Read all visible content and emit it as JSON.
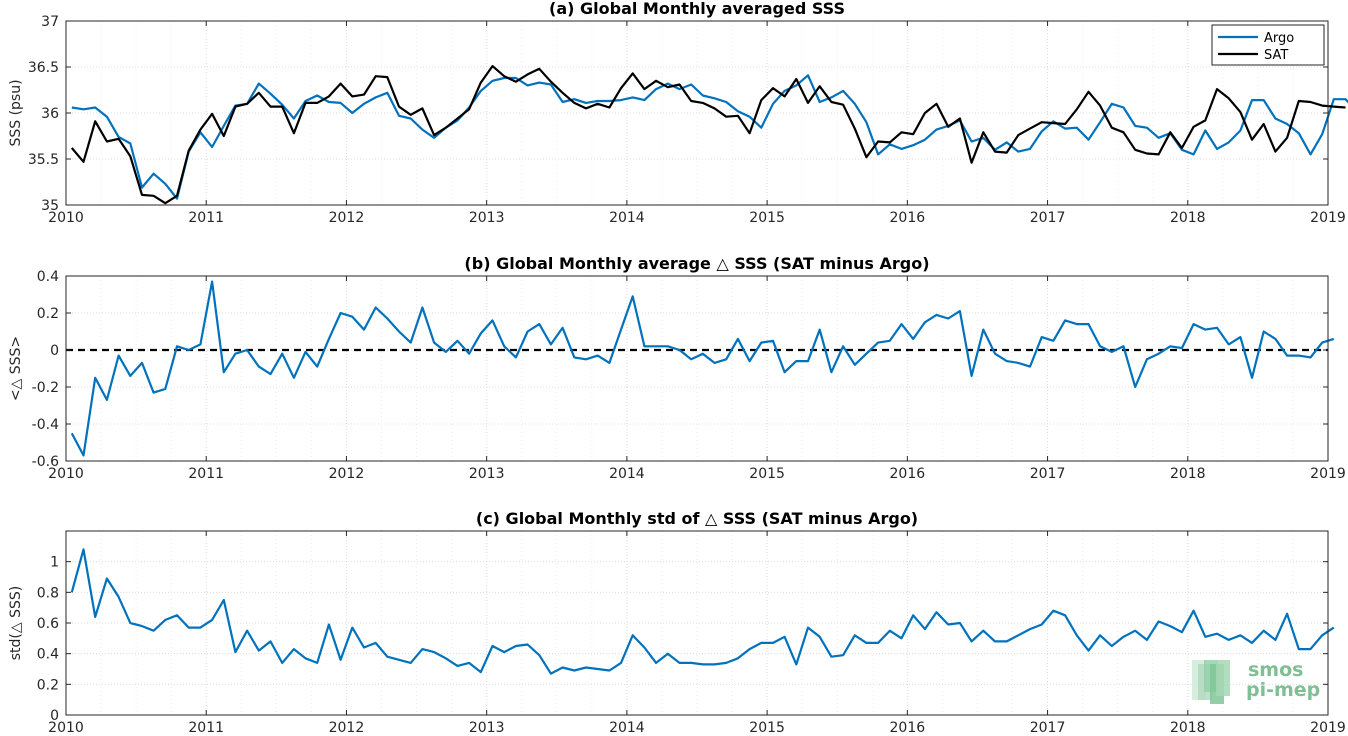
{
  "colors": {
    "argo": "#0072BD",
    "sat": "#000000",
    "zero_line": "#000000",
    "logo": "#7fbf94"
  },
  "logo": {
    "line1": "smos",
    "line2": "pi-mep"
  },
  "chart_data": [
    {
      "type": "line",
      "title": "(a) Global Monthly averaged SSS",
      "ylabel": "SSS (psu)",
      "xlim": [
        2010,
        2019
      ],
      "ylim": [
        35,
        37
      ],
      "xticks": [
        2010,
        2011,
        2012,
        2013,
        2014,
        2015,
        2016,
        2017,
        2018,
        2019
      ],
      "yticks": [
        35,
        35.5,
        36,
        36.5,
        37
      ],
      "grid": true,
      "legend": "top-right",
      "series": [
        {
          "name": "Argo",
          "color": "#0072BD",
          "values": [
            36.06,
            36.04,
            36.06,
            35.96,
            35.74,
            35.67,
            35.19,
            35.34,
            35.23,
            35.07,
            35.58,
            35.79,
            35.63,
            35.86,
            36.08,
            36.1,
            36.32,
            36.21,
            36.09,
            35.94,
            36.13,
            36.19,
            36.12,
            36.11,
            36.0,
            36.1,
            36.17,
            36.22,
            35.97,
            35.94,
            35.82,
            35.73,
            35.84,
            35.92,
            36.06,
            36.24,
            36.35,
            36.38,
            36.38,
            36.3,
            36.33,
            36.31,
            36.12,
            36.15,
            36.11,
            36.13,
            36.13,
            36.14,
            36.17,
            36.14,
            36.26,
            36.32,
            36.26,
            36.31,
            36.19,
            36.16,
            36.12,
            36.02,
            35.96,
            35.84,
            36.1,
            36.24,
            36.3,
            36.41,
            36.12,
            36.17,
            36.24,
            36.1,
            35.9,
            35.55,
            35.66,
            35.61,
            35.65,
            35.71,
            35.82,
            35.86,
            35.92,
            35.69,
            35.73,
            35.6,
            35.68,
            35.58,
            35.61,
            35.8,
            35.91,
            35.83,
            35.84,
            35.71,
            35.9,
            36.1,
            36.06,
            35.86,
            35.84,
            35.73,
            35.78,
            35.6,
            35.55,
            35.81,
            35.61,
            35.68,
            35.81,
            36.14,
            36.14,
            35.94,
            35.88,
            35.78,
            35.55,
            35.77,
            36.15,
            36.15,
            36.02,
            36.02
          ]
        },
        {
          "name": "SAT",
          "color": "#000000",
          "values": [
            35.62,
            35.47,
            35.91,
            35.69,
            35.72,
            35.53,
            35.11,
            35.1,
            35.02,
            35.1,
            35.59,
            35.82,
            35.99,
            35.75,
            36.07,
            36.1,
            36.22,
            36.07,
            36.07,
            35.78,
            36.11,
            36.11,
            36.18,
            36.32,
            36.18,
            36.2,
            36.4,
            36.39,
            36.07,
            35.98,
            36.05,
            35.76,
            35.84,
            35.94,
            36.04,
            36.33,
            36.51,
            36.4,
            36.34,
            36.42,
            36.48,
            36.34,
            36.22,
            36.11,
            36.05,
            36.1,
            36.06,
            36.27,
            36.43,
            36.26,
            36.35,
            36.28,
            36.31,
            36.13,
            36.11,
            36.05,
            35.96,
            35.97,
            35.78,
            36.14,
            36.27,
            36.18,
            36.37,
            36.11,
            36.29,
            36.12,
            36.09,
            35.83,
            35.52,
            35.69,
            35.68,
            35.79,
            35.77,
            36.0,
            36.1,
            35.85,
            35.94,
            35.46,
            35.79,
            35.58,
            35.57,
            35.76,
            35.83,
            35.9,
            35.89,
            35.88,
            36.04,
            36.23,
            36.08,
            35.84,
            35.79,
            35.6,
            35.56,
            35.55,
            35.79,
            35.62,
            35.85,
            35.92,
            36.26,
            36.16,
            36.01,
            35.71,
            35.88,
            35.58,
            35.73,
            36.13,
            36.12,
            36.08,
            36.07,
            36.06
          ]
        }
      ]
    },
    {
      "type": "line",
      "title": "(b) Global Monthly average △ SSS (SAT minus Argo)",
      "ylabel": "<△ SSS>",
      "xlim": [
        2010,
        2019
      ],
      "ylim": [
        -0.6,
        0.4
      ],
      "xticks": [
        2010,
        2011,
        2012,
        2013,
        2014,
        2015,
        2016,
        2017,
        2018,
        2019
      ],
      "yticks": [
        -0.6,
        -0.4,
        -0.2,
        0,
        0.2,
        0.4
      ],
      "grid": true,
      "reference_line": 0,
      "series": [
        {
          "name": "",
          "color": "#0072BD",
          "values": [
            -0.45,
            -0.57,
            -0.15,
            -0.27,
            -0.03,
            -0.14,
            -0.07,
            -0.23,
            -0.21,
            0.02,
            0.0,
            0.03,
            0.37,
            -0.12,
            -0.02,
            0.0,
            -0.09,
            -0.13,
            -0.02,
            -0.15,
            -0.01,
            -0.09,
            0.06,
            0.2,
            0.18,
            0.11,
            0.23,
            0.17,
            0.1,
            0.04,
            0.23,
            0.04,
            -0.01,
            0.05,
            -0.02,
            0.09,
            0.16,
            0.02,
            -0.04,
            0.1,
            0.14,
            0.03,
            0.12,
            -0.04,
            -0.05,
            -0.03,
            -0.07,
            0.11,
            0.29,
            0.02,
            0.02,
            0.02,
            0.0,
            -0.05,
            -0.02,
            -0.07,
            -0.05,
            0.06,
            -0.06,
            0.04,
            0.05,
            -0.12,
            -0.06,
            -0.06,
            0.11,
            -0.12,
            0.02,
            -0.08,
            -0.02,
            0.04,
            0.05,
            0.14,
            0.06,
            0.15,
            0.19,
            0.17,
            0.21,
            -0.14,
            0.11,
            -0.02,
            -0.06,
            -0.07,
            -0.09,
            0.07,
            0.05,
            0.16,
            0.14,
            0.14,
            0.02,
            -0.01,
            0.02,
            -0.2,
            -0.05,
            -0.02,
            0.02,
            0.01,
            0.14,
            0.11,
            0.12,
            0.03,
            0.07,
            -0.15,
            0.1,
            0.06,
            -0.03,
            -0.03,
            -0.04,
            0.04,
            0.06
          ]
        }
      ]
    },
    {
      "type": "line",
      "title": "(c) Global Monthly std of △ SSS (SAT minus Argo)",
      "ylabel": "std(△ SSS)",
      "xlim": [
        2010,
        2019
      ],
      "ylim": [
        0,
        1.2
      ],
      "xticks": [
        2010,
        2011,
        2012,
        2013,
        2014,
        2015,
        2016,
        2017,
        2018,
        2019
      ],
      "yticks": [
        0,
        0.2,
        0.4,
        0.6,
        0.8,
        1
      ],
      "grid": true,
      "series": [
        {
          "name": "",
          "color": "#0072BD",
          "values": [
            0.8,
            1.08,
            0.64,
            0.89,
            0.77,
            0.6,
            0.58,
            0.55,
            0.62,
            0.65,
            0.57,
            0.57,
            0.62,
            0.75,
            0.41,
            0.55,
            0.42,
            0.48,
            0.34,
            0.43,
            0.37,
            0.34,
            0.59,
            0.36,
            0.57,
            0.44,
            0.47,
            0.38,
            0.36,
            0.34,
            0.43,
            0.41,
            0.37,
            0.32,
            0.34,
            0.28,
            0.45,
            0.41,
            0.45,
            0.46,
            0.39,
            0.27,
            0.31,
            0.29,
            0.31,
            0.3,
            0.29,
            0.34,
            0.52,
            0.44,
            0.34,
            0.4,
            0.34,
            0.34,
            0.33,
            0.33,
            0.34,
            0.37,
            0.43,
            0.47,
            0.47,
            0.51,
            0.33,
            0.57,
            0.51,
            0.38,
            0.39,
            0.52,
            0.47,
            0.47,
            0.55,
            0.5,
            0.65,
            0.56,
            0.67,
            0.59,
            0.6,
            0.48,
            0.55,
            0.48,
            0.48,
            0.52,
            0.56,
            0.59,
            0.68,
            0.65,
            0.52,
            0.42,
            0.52,
            0.45,
            0.51,
            0.55,
            0.49,
            0.61,
            0.58,
            0.54,
            0.68,
            0.51,
            0.53,
            0.49,
            0.52,
            0.47,
            0.55,
            0.49,
            0.66,
            0.43,
            0.43,
            0.52,
            0.57
          ]
        }
      ]
    }
  ]
}
